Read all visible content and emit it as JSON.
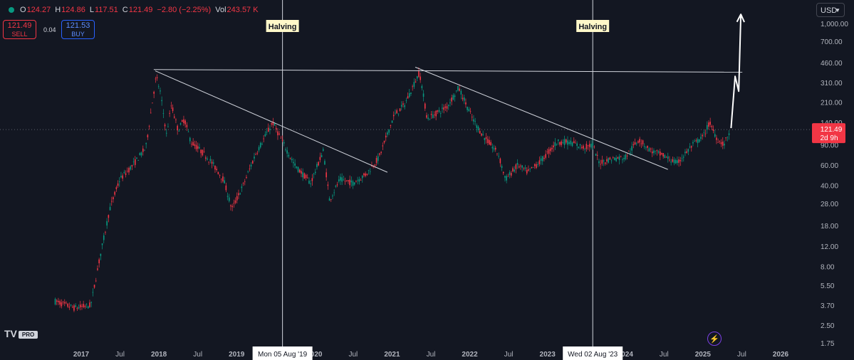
{
  "header": {
    "open_label": "O",
    "open": "124.27",
    "high_label": "H",
    "high": "124.86",
    "low_label": "L",
    "low": "117.51",
    "close_label": "C",
    "close": "121.49",
    "change": "−2.80 (−2.25%)",
    "vol_label": "Vol",
    "vol": "243.57 K"
  },
  "trade": {
    "sell_price": "121.49",
    "sell_label": "SELL",
    "spread": "0.04",
    "buy_price": "121.53",
    "buy_label": "BUY"
  },
  "currency": "USD",
  "logo": {
    "brand": "TV",
    "pro": "PRO"
  },
  "colors": {
    "up": "#089981",
    "down": "#f23645",
    "background": "#131722",
    "text": "#d1d4dc",
    "price_tag": "#f23645"
  },
  "chart_data": {
    "type": "candlestick",
    "scale": "log",
    "y_ticks": [
      "1,000.00",
      "700.00",
      "460.00",
      "310.00",
      "210.00",
      "140.00",
      "90.00",
      "60.00",
      "40.00",
      "28.00",
      "18.00",
      "12.00",
      "8.00",
      "5.50",
      "3.70",
      "2.50",
      "1.75"
    ],
    "x_ticks": [
      "2017",
      "Jul",
      "2018",
      "Jul",
      "2019",
      "Jul",
      "2020",
      "Jul",
      "2021",
      "Jul",
      "2022",
      "Jul",
      "2023",
      "Jul",
      "2024",
      "Jul",
      "2025",
      "Jul",
      "2026"
    ],
    "last_price": "121.49",
    "countdown": "2d 9h",
    "series": [
      {
        "date": "2016-09-01",
        "value": 4.0
      },
      {
        "date": "2016-12-01",
        "value": 3.5
      },
      {
        "date": "2017-02-15",
        "value": 3.7
      },
      {
        "date": "2017-04-01",
        "value": 10
      },
      {
        "date": "2017-05-15",
        "value": 25
      },
      {
        "date": "2017-07-01",
        "value": 45
      },
      {
        "date": "2017-09-01",
        "value": 60
      },
      {
        "date": "2017-11-01",
        "value": 85
      },
      {
        "date": "2017-12-19",
        "value": 350
      },
      {
        "date": "2018-01-07",
        "value": 260
      },
      {
        "date": "2018-02-06",
        "value": 110
      },
      {
        "date": "2018-03-01",
        "value": 200
      },
      {
        "date": "2018-04-01",
        "value": 120
      },
      {
        "date": "2018-05-01",
        "value": 150
      },
      {
        "date": "2018-06-01",
        "value": 95
      },
      {
        "date": "2018-08-01",
        "value": 75
      },
      {
        "date": "2018-09-01",
        "value": 65
      },
      {
        "date": "2018-11-01",
        "value": 45
      },
      {
        "date": "2018-12-10",
        "value": 25
      },
      {
        "date": "2019-02-01",
        "value": 40
      },
      {
        "date": "2019-04-01",
        "value": 75
      },
      {
        "date": "2019-06-20",
        "value": 140
      },
      {
        "date": "2019-08-05",
        "value": 95
      },
      {
        "date": "2019-10-01",
        "value": 60
      },
      {
        "date": "2019-12-15",
        "value": 42
      },
      {
        "date": "2020-02-13",
        "value": 80
      },
      {
        "date": "2020-03-13",
        "value": 30
      },
      {
        "date": "2020-05-01",
        "value": 45
      },
      {
        "date": "2020-07-01",
        "value": 42
      },
      {
        "date": "2020-09-01",
        "value": 50
      },
      {
        "date": "2020-11-01",
        "value": 70
      },
      {
        "date": "2021-01-10",
        "value": 160
      },
      {
        "date": "2021-03-01",
        "value": 200
      },
      {
        "date": "2021-05-10",
        "value": 380
      },
      {
        "date": "2021-06-15",
        "value": 150
      },
      {
        "date": "2021-08-01",
        "value": 170
      },
      {
        "date": "2021-09-15",
        "value": 190
      },
      {
        "date": "2021-11-10",
        "value": 280
      },
      {
        "date": "2022-01-15",
        "value": 150
      },
      {
        "date": "2022-03-01",
        "value": 110
      },
      {
        "date": "2022-05-15",
        "value": 75
      },
      {
        "date": "2022-06-18",
        "value": 45
      },
      {
        "date": "2022-08-15",
        "value": 60
      },
      {
        "date": "2022-10-01",
        "value": 52
      },
      {
        "date": "2022-12-01",
        "value": 65
      },
      {
        "date": "2023-02-15",
        "value": 95
      },
      {
        "date": "2023-04-15",
        "value": 95
      },
      {
        "date": "2023-06-20",
        "value": 85
      },
      {
        "date": "2023-08-02",
        "value": 90
      },
      {
        "date": "2023-09-01",
        "value": 63
      },
      {
        "date": "2023-11-01",
        "value": 68
      },
      {
        "date": "2024-01-01",
        "value": 70
      },
      {
        "date": "2024-03-05",
        "value": 100
      },
      {
        "date": "2024-05-01",
        "value": 80
      },
      {
        "date": "2024-07-01",
        "value": 72
      },
      {
        "date": "2024-09-01",
        "value": 62
      },
      {
        "date": "2024-11-15",
        "value": 90
      },
      {
        "date": "2025-01-01",
        "value": 105
      },
      {
        "date": "2025-02-01",
        "value": 140
      },
      {
        "date": "2025-03-10",
        "value": 100
      },
      {
        "date": "2025-04-10",
        "value": 90
      },
      {
        "date": "2025-05-10",
        "value": 121.49
      }
    ],
    "vlines": [
      {
        "date": "2019-08-05",
        "label": "Halving",
        "date_label": "Mon 05 Aug '19"
      },
      {
        "date": "2023-08-02",
        "label": "Halving",
        "date_label": "Wed 02 Aug '23"
      }
    ],
    "lines": [
      {
        "from": {
          "date": "2017-12-08",
          "value": 400
        },
        "to": {
          "date": "2025-07-05",
          "value": 380
        }
      },
      {
        "from": {
          "date": "2017-12-15",
          "value": 390
        },
        "to": {
          "date": "2020-12-10",
          "value": 52
        }
      },
      {
        "from": {
          "date": "2021-04-20",
          "value": 420
        },
        "to": {
          "date": "2024-07-20",
          "value": 55
        }
      }
    ],
    "projection": [
      {
        "date": "2025-05-13",
        "value": 125
      },
      {
        "date": "2025-06-01",
        "value": 350
      },
      {
        "date": "2025-06-18",
        "value": 260
      },
      {
        "date": "2025-06-28",
        "value": 1200
      }
    ]
  }
}
